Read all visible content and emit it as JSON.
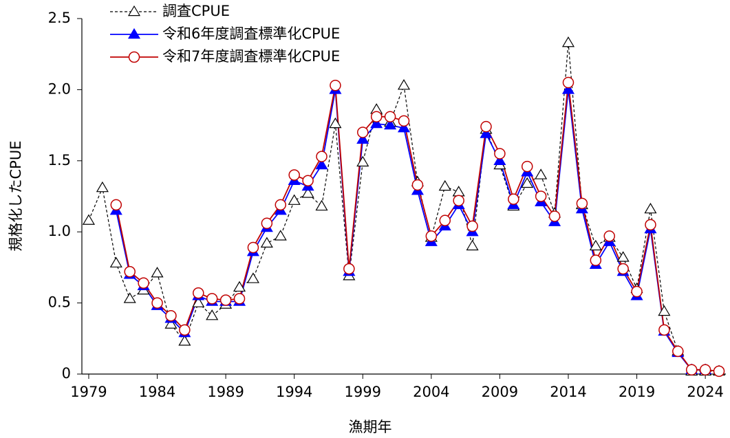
{
  "chart_data": {
    "type": "line",
    "xlabel": "漁期年",
    "ylabel": "規格化したCPUE",
    "x": [
      1979,
      1980,
      1981,
      1982,
      1983,
      1984,
      1985,
      1986,
      1987,
      1988,
      1989,
      1990,
      1991,
      1992,
      1993,
      1994,
      1995,
      1996,
      1997,
      1998,
      1999,
      2000,
      2001,
      2002,
      2003,
      2004,
      2005,
      2006,
      2007,
      2008,
      2009,
      2010,
      2011,
      2012,
      2013,
      2014,
      2015,
      2016,
      2017,
      2018,
      2019,
      2020,
      2021,
      2022,
      2023,
      2024,
      2025
    ],
    "series": [
      {
        "name": "調査CPUE",
        "color": "#000000",
        "marker": "triangle-open",
        "dash": true,
        "values": [
          1.08,
          1.31,
          0.78,
          0.53,
          0.59,
          0.71,
          0.35,
          0.23,
          0.5,
          0.41,
          0.49,
          0.61,
          0.67,
          0.92,
          0.97,
          1.22,
          1.27,
          1.18,
          1.76,
          0.69,
          1.49,
          1.86,
          1.77,
          2.03,
          1.35,
          0.96,
          1.32,
          1.28,
          0.9,
          1.72,
          1.47,
          1.18,
          1.34,
          1.4,
          1.13,
          2.33,
          1.19,
          0.9,
          0.96,
          0.82,
          0.6,
          1.16,
          0.44,
          0.16,
          0.02,
          0.02,
          0.02
        ]
      },
      {
        "name": "令和6年度調査標準化CPUE",
        "color": "#0000ff",
        "marker": "triangle",
        "dash": false,
        "values": [
          null,
          null,
          1.15,
          0.7,
          0.62,
          0.48,
          0.39,
          0.29,
          0.55,
          0.51,
          0.51,
          0.51,
          0.86,
          1.03,
          1.15,
          1.36,
          1.32,
          1.47,
          2.0,
          0.72,
          1.65,
          1.76,
          1.75,
          1.73,
          1.29,
          0.93,
          1.04,
          1.19,
          1.0,
          1.69,
          1.5,
          1.19,
          1.42,
          1.21,
          1.07,
          2.0,
          1.16,
          0.77,
          0.93,
          0.72,
          0.55,
          1.02,
          0.3,
          0.15,
          0.03,
          0.03,
          null
        ]
      },
      {
        "name": "令和7年度調査標準化CPUE",
        "color": "#c00000",
        "marker": "circle-open",
        "dash": false,
        "values": [
          null,
          null,
          1.19,
          0.72,
          0.64,
          0.5,
          0.41,
          0.31,
          0.57,
          0.53,
          0.52,
          0.53,
          0.89,
          1.06,
          1.19,
          1.4,
          1.36,
          1.53,
          2.03,
          0.74,
          1.7,
          1.81,
          1.81,
          1.78,
          1.33,
          0.97,
          1.08,
          1.22,
          1.04,
          1.74,
          1.55,
          1.23,
          1.46,
          1.25,
          1.11,
          2.05,
          1.2,
          0.8,
          0.97,
          0.74,
          0.58,
          1.05,
          0.31,
          0.16,
          0.03,
          0.03,
          0.02
        ]
      }
    ],
    "xlim": [
      1978.5,
      2025.5
    ],
    "xticks": [
      1979,
      1984,
      1989,
      1994,
      1999,
      2004,
      2009,
      2014,
      2019,
      2024
    ],
    "ylim": [
      0,
      2.5
    ],
    "yticks": [
      0,
      0.5,
      {
        "value": 1,
        "label": "1.0"
      },
      1.5,
      {
        "value": 2,
        "label": "2.0"
      },
      2.5
    ],
    "grid": false,
    "legend": "upper left"
  }
}
